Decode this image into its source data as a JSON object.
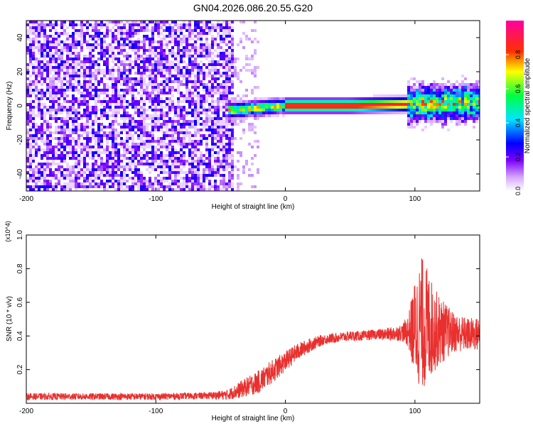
{
  "figure": {
    "title": "GN04.2026.086.20.55.G20"
  },
  "chart_data": [
    {
      "type": "heatmap",
      "title": "GN04.2026.086.20.55.G20",
      "xlabel": "Height of straight line (km)",
      "ylabel": "Frequency (Hz)",
      "xlim": [
        -200,
        150
      ],
      "ylim": [
        -50,
        50
      ],
      "xticks": [
        -200,
        -100,
        0,
        100
      ],
      "yticks": [
        -40,
        -20,
        0,
        20,
        40
      ],
      "colorbar": {
        "label": "Normalized spectral amplitude",
        "range": [
          0,
          1
        ],
        "ticks": [
          "0.0",
          "0.2",
          "0.4",
          "0.6",
          "0.8"
        ],
        "colors": [
          "#ffffff",
          "#7b00ff",
          "#0000ff",
          "#00ffff",
          "#00ff00",
          "#ffff00",
          "#ff0000",
          "#ff00ff"
        ]
      },
      "features": {
        "noise_region_x": [
          -200,
          -40
        ],
        "noise_level": 0.15,
        "carrier_start_x": -45,
        "carrier_frequency_hz": [
          [
            -45,
            -3
          ],
          [
            0,
            0
          ],
          [
            50,
            0
          ],
          [
            100,
            1
          ],
          [
            150,
            2
          ]
        ],
        "carrier_peak_amplitude": 0.9,
        "turbulent_region_x": [
          95,
          150
        ]
      }
    },
    {
      "type": "line",
      "xlabel": "Height of straight line (km)",
      "ylabel": "SNR (10 * v/v)",
      "scale_label": "(x10^4)",
      "xlim": [
        -200,
        150
      ],
      "ylim": [
        0,
        1.0
      ],
      "xticks": [
        -200,
        -100,
        0,
        100
      ],
      "yticks": [
        0.2,
        0.4,
        0.6,
        0.8,
        1.0
      ],
      "color": "#e8312f",
      "series": [
        {
          "x": [
            -200,
            -150,
            -100,
            -60,
            -45,
            -35,
            -20,
            -10,
            0,
            10,
            20,
            30,
            40,
            50,
            60,
            70,
            80,
            90,
            95,
            100,
            105,
            110,
            115,
            120,
            130,
            140,
            150
          ],
          "y": [
            0.04,
            0.04,
            0.04,
            0.045,
            0.05,
            0.08,
            0.13,
            0.19,
            0.25,
            0.31,
            0.35,
            0.38,
            0.39,
            0.4,
            0.4,
            0.41,
            0.41,
            0.42,
            0.43,
            0.44,
            0.48,
            0.45,
            0.44,
            0.43,
            0.42,
            0.41,
            0.41
          ],
          "noise_amplitude": [
            0.02,
            0.02,
            0.02,
            0.02,
            0.03,
            0.05,
            0.07,
            0.07,
            0.06,
            0.05,
            0.04,
            0.03,
            0.03,
            0.03,
            0.03,
            0.03,
            0.04,
            0.05,
            0.1,
            0.3,
            0.4,
            0.35,
            0.25,
            0.2,
            0.12,
            0.1,
            0.1
          ]
        }
      ]
    }
  ]
}
